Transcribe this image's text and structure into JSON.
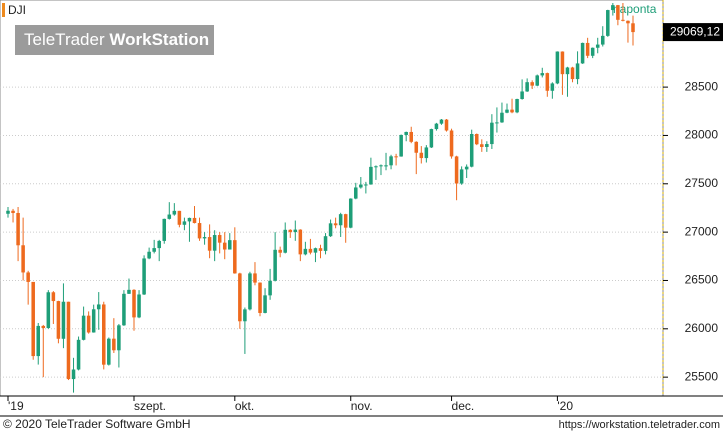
{
  "chart_data": {
    "type": "candlestick",
    "symbol": "DJI",
    "period": "naponta",
    "watermark": {
      "light": "TeleTrader",
      "bold": "WorkStation"
    },
    "last_price": {
      "value": 29069.12,
      "label": "29069,12"
    },
    "footer_left": "© 2020 TeleTrader Software GmbH",
    "footer_right": "https://workstation.teletrader.com",
    "up_color": "#1e9e78",
    "down_color": "#ee6a1e",
    "grid": true,
    "ylim": [
      25305,
      29401
    ],
    "yticks": [
      25500,
      26000,
      26500,
      27000,
      27500,
      28000,
      28500
    ],
    "x_labels": [
      {
        "label": "'19",
        "index": 0
      },
      {
        "label": "szept.",
        "index": 25
      },
      {
        "label": "okt.",
        "index": 45
      },
      {
        "label": "nov.",
        "index": 68
      },
      {
        "label": "dec.",
        "index": 88
      },
      {
        "label": "'20",
        "index": 109
      }
    ],
    "candles": [
      [
        27190,
        27260,
        27150,
        27221
      ],
      [
        27221,
        27240,
        27100,
        27198
      ],
      [
        27198,
        27260,
        26700,
        26864
      ],
      [
        26864,
        27150,
        26500,
        26583
      ],
      [
        26583,
        26600,
        26250,
        26485
      ],
      [
        26485,
        26485,
        25680,
        25718
      ],
      [
        25718,
        26060,
        25630,
        26030
      ],
      [
        26030,
        26040,
        25500,
        26008
      ],
      [
        26008,
        26400,
        26000,
        26378
      ],
      [
        26378,
        26390,
        26050,
        26287
      ],
      [
        26287,
        26290,
        25850,
        25897
      ],
      [
        25897,
        26470,
        25800,
        26280
      ],
      [
        26280,
        26280,
        25470,
        25480
      ],
      [
        25480,
        25700,
        25340,
        25579
      ],
      [
        25579,
        25920,
        25570,
        25886
      ],
      [
        25886,
        26230,
        25880,
        26136
      ],
      [
        26136,
        26180,
        25950,
        25962
      ],
      [
        25962,
        26250,
        25960,
        26202
      ],
      [
        26202,
        26380,
        25990,
        26252
      ],
      [
        26252,
        26280,
        25580,
        25629
      ],
      [
        25629,
        25910,
        25620,
        25898
      ],
      [
        25898,
        26110,
        25750,
        25778
      ],
      [
        25778,
        26050,
        25600,
        26036
      ],
      [
        26036,
        26400,
        26030,
        26362
      ],
      [
        26362,
        26520,
        26360,
        26403
      ],
      [
        26403,
        26410,
        25980,
        26118
      ],
      [
        26118,
        26400,
        26110,
        26355
      ],
      [
        26355,
        26760,
        26350,
        26728
      ],
      [
        26728,
        26840,
        26720,
        26797
      ],
      [
        26797,
        26920,
        26780,
        26835
      ],
      [
        26835,
        26920,
        26700,
        26909
      ],
      [
        26909,
        27140,
        26880,
        27137
      ],
      [
        27137,
        27310,
        27130,
        27182
      ],
      [
        27182,
        27300,
        27170,
        27220
      ],
      [
        27220,
        27220,
        27050,
        27076
      ],
      [
        27076,
        27150,
        27020,
        27111
      ],
      [
        27111,
        27150,
        26900,
        27147
      ],
      [
        27147,
        27270,
        27090,
        27094
      ],
      [
        27094,
        27150,
        26910,
        26935
      ],
      [
        26935,
        27000,
        26870,
        26949
      ],
      [
        26949,
        27080,
        26730,
        26808
      ],
      [
        26808,
        27020,
        26700,
        26970
      ],
      [
        26970,
        27000,
        26780,
        26891
      ],
      [
        26891,
        27000,
        26720,
        26820
      ],
      [
        26820,
        26990,
        26820,
        26917
      ],
      [
        26917,
        27050,
        26570,
        26573
      ],
      [
        26573,
        26580,
        26000,
        26078
      ],
      [
        26078,
        26220,
        25740,
        26201
      ],
      [
        26201,
        26590,
        26190,
        26573
      ],
      [
        26573,
        26690,
        26450,
        26478
      ],
      [
        26478,
        26480,
        26130,
        26164
      ],
      [
        26164,
        26420,
        26160,
        26346
      ],
      [
        26346,
        26620,
        26300,
        26497
      ],
      [
        26497,
        27000,
        26490,
        26817
      ],
      [
        26817,
        26850,
        26740,
        26787
      ],
      [
        26787,
        27100,
        26780,
        27024
      ],
      [
        27024,
        27030,
        26940,
        27001
      ],
      [
        27001,
        27120,
        26910,
        27026
      ],
      [
        27026,
        27030,
        26700,
        26770
      ],
      [
        26770,
        26900,
        26760,
        26827
      ],
      [
        26827,
        26930,
        26770,
        26788
      ],
      [
        26788,
        26840,
        26690,
        26834
      ],
      [
        26834,
        26870,
        26730,
        26806
      ],
      [
        26806,
        26990,
        26770,
        26958
      ],
      [
        26958,
        27130,
        26950,
        27091
      ],
      [
        27091,
        27150,
        27040,
        27071
      ],
      [
        27071,
        27200,
        26950,
        27186
      ],
      [
        27186,
        27190,
        26890,
        27046
      ],
      [
        27046,
        27350,
        27040,
        27347
      ],
      [
        27347,
        27510,
        27340,
        27462
      ],
      [
        27462,
        27570,
        27450,
        27492
      ],
      [
        27492,
        27520,
        27400,
        27493
      ],
      [
        27493,
        27770,
        27490,
        27675
      ],
      [
        27675,
        27690,
        27540,
        27681
      ],
      [
        27681,
        27700,
        27590,
        27691
      ],
      [
        27680,
        27820,
        27640,
        27691
      ],
      [
        27691,
        27800,
        27650,
        27784
      ],
      [
        27784,
        27810,
        27690,
        27782
      ],
      [
        27782,
        28010,
        27780,
        28005
      ],
      [
        28005,
        28040,
        27940,
        28036
      ],
      [
        28036,
        28090,
        27920,
        27934
      ],
      [
        27934,
        27940,
        27600,
        27821
      ],
      [
        27821,
        27890,
        27710,
        27766
      ],
      [
        27766,
        27900,
        27720,
        27876
      ],
      [
        27876,
        28070,
        27870,
        28066
      ],
      [
        28066,
        28130,
        28050,
        28122
      ],
      [
        28122,
        28170,
        28110,
        28164
      ],
      [
        28164,
        28170,
        28040,
        28051
      ],
      [
        28051,
        28070,
        27760,
        27783
      ],
      [
        27783,
        27790,
        27330,
        27503
      ],
      [
        27503,
        27680,
        27490,
        27649
      ],
      [
        27649,
        27700,
        27560,
        27677
      ],
      [
        27677,
        28060,
        27670,
        28015
      ],
      [
        28015,
        28020,
        27900,
        27909
      ],
      [
        27909,
        27960,
        27830,
        27881
      ],
      [
        27881,
        27940,
        27830,
        27911
      ],
      [
        27911,
        28220,
        27860,
        28132
      ],
      [
        28132,
        28290,
        28030,
        28135
      ],
      [
        28135,
        28340,
        28130,
        28235
      ],
      [
        28235,
        28330,
        28230,
        28267
      ],
      [
        28267,
        28380,
        28230,
        28239
      ],
      [
        28239,
        28380,
        28230,
        28377
      ],
      [
        28377,
        28580,
        28370,
        28455
      ],
      [
        28455,
        28590,
        28450,
        28551
      ],
      [
        28551,
        28570,
        28480,
        28515
      ],
      [
        28515,
        28630,
        28510,
        28621
      ],
      [
        28621,
        28700,
        28600,
        28645
      ],
      [
        28645,
        28650,
        28400,
        28462
      ],
      [
        28462,
        28550,
        28380,
        28538
      ],
      [
        28538,
        28870,
        28530,
        28868
      ],
      [
        28868,
        28870,
        28420,
        28634
      ],
      [
        28634,
        28710,
        28400,
        28703
      ],
      [
        28703,
        28710,
        28550,
        28583
      ],
      [
        28583,
        28870,
        28530,
        28745
      ],
      [
        28745,
        28960,
        28740,
        28957
      ],
      [
        28957,
        29010,
        28800,
        28824
      ],
      [
        28824,
        28910,
        28800,
        28907
      ],
      [
        28907,
        29010,
        28850,
        28940
      ],
      [
        28940,
        29130,
        28920,
        29030
      ],
      [
        29030,
        29300,
        29020,
        29297
      ],
      [
        29297,
        29370,
        29240,
        29348
      ],
      [
        29348,
        29350,
        29140,
        29196
      ],
      [
        29196,
        29370,
        29180,
        29186
      ],
      [
        29186,
        29190,
        28960,
        29160
      ],
      [
        29160,
        29240,
        28930,
        29069.12
      ]
    ]
  }
}
